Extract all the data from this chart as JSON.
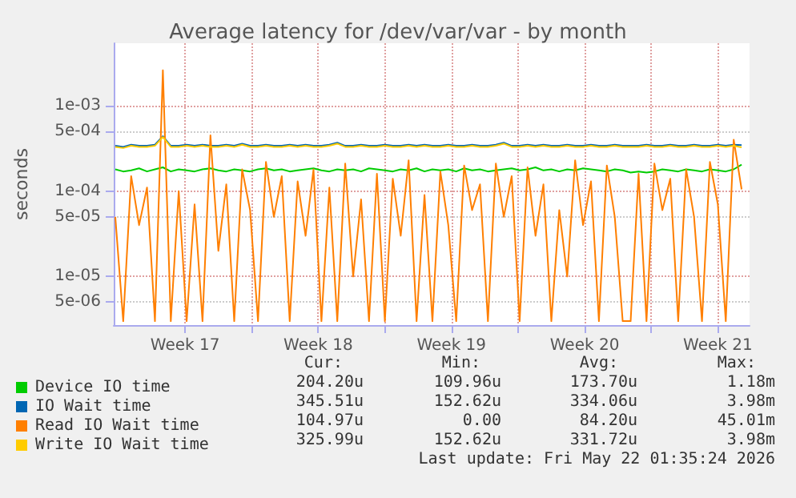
{
  "chart_data": {
    "type": "line",
    "title": "Average latency for /dev/var/var - by month",
    "ylabel": "seconds",
    "log": "y",
    "grid": true,
    "legend": "bottom",
    "marker": "none",
    "line_style": "solid",
    "xlim": [
      "2026-04-19T18:00",
      "2026-05-23T04:00"
    ],
    "xticks": [
      {
        "value": "2026-04-23T12:00",
        "label": "Week 17"
      },
      {
        "value": "2026-04-27T00:00",
        "label": null
      },
      {
        "value": "2026-04-30T12:00",
        "label": "Week 18"
      },
      {
        "value": "2026-05-04T00:00",
        "label": null
      },
      {
        "value": "2026-05-07T12:00",
        "label": "Week 19"
      },
      {
        "value": "2026-05-11T00:00",
        "label": null
      },
      {
        "value": "2026-05-14T12:00",
        "label": "Week 20"
      },
      {
        "value": "2026-05-18T00:00",
        "label": null
      },
      {
        "value": "2026-05-21T12:00",
        "label": "Week 21"
      }
    ],
    "ylim": [
      2.7e-06,
      0.0054
    ],
    "yticks": [
      {
        "value": 5e-06,
        "label": "5e-06"
      },
      {
        "value": 1e-05,
        "label": "1e-05"
      },
      {
        "value": 5e-05,
        "label": "5e-05"
      },
      {
        "value": 0.0001,
        "label": "1e-04"
      },
      {
        "value": 0.0005,
        "label": "5e-04"
      },
      {
        "value": 0.001,
        "label": "1e-03"
      }
    ],
    "x": [
      "2026-04-19T20:00",
      "2026-04-20T06:00",
      "2026-04-20T16:00",
      "2026-04-21T02:00",
      "2026-04-21T12:00",
      "2026-04-21T22:00",
      "2026-04-22T08:00",
      "2026-04-22T18:00",
      "2026-04-23T04:00",
      "2026-04-23T14:00",
      "2026-04-24T00:00",
      "2026-04-24T10:00",
      "2026-04-24T20:00",
      "2026-04-25T06:00",
      "2026-04-25T16:00",
      "2026-04-26T02:00",
      "2026-04-26T12:00",
      "2026-04-26T22:00",
      "2026-04-27T08:00",
      "2026-04-27T18:00",
      "2026-04-28T04:00",
      "2026-04-28T14:00",
      "2026-04-29T00:00",
      "2026-04-29T10:00",
      "2026-04-29T20:00",
      "2026-04-30T06:00",
      "2026-04-30T16:00",
      "2026-05-01T02:00",
      "2026-05-01T12:00",
      "2026-05-01T22:00",
      "2026-05-02T08:00",
      "2026-05-02T18:00",
      "2026-05-03T04:00",
      "2026-05-03T14:00",
      "2026-05-04T00:00",
      "2026-05-04T10:00",
      "2026-05-04T20:00",
      "2026-05-05T06:00",
      "2026-05-05T16:00",
      "2026-05-06T02:00",
      "2026-05-06T12:00",
      "2026-05-06T22:00",
      "2026-05-07T08:00",
      "2026-05-07T18:00",
      "2026-05-08T04:00",
      "2026-05-08T14:00",
      "2026-05-09T00:00",
      "2026-05-09T10:00",
      "2026-05-09T20:00",
      "2026-05-10T06:00",
      "2026-05-10T16:00",
      "2026-05-11T02:00",
      "2026-05-11T12:00",
      "2026-05-11T22:00",
      "2026-05-12T08:00",
      "2026-05-12T18:00",
      "2026-05-13T04:00",
      "2026-05-13T14:00",
      "2026-05-14T00:00",
      "2026-05-14T10:00",
      "2026-05-14T20:00",
      "2026-05-15T06:00",
      "2026-05-15T16:00",
      "2026-05-16T02:00",
      "2026-05-16T12:00",
      "2026-05-16T22:00",
      "2026-05-17T08:00",
      "2026-05-17T18:00",
      "2026-05-18T04:00",
      "2026-05-18T14:00",
      "2026-05-19T00:00",
      "2026-05-19T10:00",
      "2026-05-19T20:00",
      "2026-05-20T06:00",
      "2026-05-20T16:00",
      "2026-05-21T02:00",
      "2026-05-21T12:00",
      "2026-05-21T22:00",
      "2026-05-22T08:00",
      "2026-05-22T18:00"
    ],
    "series": [
      {
        "name": "Device IO time",
        "color": "#00cc00",
        "values": [
          0.00018,
          0.00017,
          0.000175,
          0.000185,
          0.00017,
          0.00018,
          0.00019,
          0.00017,
          0.00018,
          0.000175,
          0.00017,
          0.00018,
          0.000185,
          0.000175,
          0.00017,
          0.00018,
          0.000175,
          0.00017,
          0.00018,
          0.000185,
          0.000175,
          0.00018,
          0.00017,
          0.000175,
          0.00018,
          0.000185,
          0.000175,
          0.00017,
          0.00018,
          0.000175,
          0.00018,
          0.00017,
          0.000185,
          0.00018,
          0.000175,
          0.00017,
          0.00018,
          0.000175,
          0.000185,
          0.00017,
          0.00018,
          0.000175,
          0.00018,
          0.00017,
          0.000185,
          0.000175,
          0.00018,
          0.00017,
          0.000175,
          0.00018,
          0.000185,
          0.000175,
          0.00018,
          0.00019,
          0.000175,
          0.00018,
          0.00017,
          0.00018,
          0.000175,
          0.000185,
          0.00018,
          0.000175,
          0.00017,
          0.00018,
          0.000175,
          0.000165,
          0.00017,
          0.000165,
          0.00017,
          0.00018,
          0.000175,
          0.00017,
          0.00018,
          0.000175,
          0.00017,
          0.00018,
          0.000175,
          0.00017,
          0.00018,
          0.000204
        ]
      },
      {
        "name": "IO Wait time",
        "color": "#0066b3",
        "values": [
          0.00034,
          0.00033,
          0.00035,
          0.00034,
          0.00034,
          0.00035,
          0.00044,
          0.00034,
          0.00034,
          0.00035,
          0.00034,
          0.00035,
          0.00034,
          0.00034,
          0.00035,
          0.00034,
          0.00036,
          0.00034,
          0.00034,
          0.00035,
          0.00034,
          0.00034,
          0.00035,
          0.00034,
          0.00035,
          0.00034,
          0.00034,
          0.00035,
          0.00037,
          0.00034,
          0.00034,
          0.00035,
          0.00034,
          0.00034,
          0.00035,
          0.00034,
          0.00034,
          0.00035,
          0.00034,
          0.00035,
          0.00034,
          0.00034,
          0.00035,
          0.00034,
          0.00034,
          0.00035,
          0.00034,
          0.00034,
          0.00035,
          0.00037,
          0.00034,
          0.00034,
          0.00035,
          0.00034,
          0.00035,
          0.00034,
          0.00034,
          0.00035,
          0.00034,
          0.00034,
          0.00035,
          0.00034,
          0.00034,
          0.00035,
          0.00034,
          0.00034,
          0.00034,
          0.00035,
          0.00034,
          0.00034,
          0.00035,
          0.00034,
          0.00034,
          0.00035,
          0.00034,
          0.00034,
          0.00035,
          0.00034,
          0.00035,
          0.000346
        ]
      },
      {
        "name": "Read IO Wait time",
        "color": "#ff7f00",
        "values": [
          5e-05,
          3e-06,
          0.00015,
          4e-05,
          0.00011,
          3e-06,
          0.0026,
          3e-06,
          0.0001,
          3e-06,
          7e-05,
          3e-06,
          0.00045,
          2e-05,
          0.00012,
          3e-06,
          0.00018,
          6e-05,
          3e-06,
          0.00022,
          5e-05,
          0.00015,
          3e-06,
          0.00013,
          3e-05,
          0.00018,
          3e-06,
          0.00011,
          3e-06,
          0.00021,
          1e-05,
          8e-05,
          3e-06,
          0.00016,
          3e-06,
          0.00014,
          3e-05,
          0.00023,
          3e-06,
          9e-05,
          3e-06,
          0.00017,
          4e-05,
          3e-06,
          0.0002,
          6e-05,
          0.00012,
          3e-06,
          0.00021,
          5e-05,
          0.00015,
          3e-06,
          0.00019,
          3e-05,
          0.00012,
          3e-06,
          6e-05,
          1e-05,
          0.00023,
          4e-05,
          0.00013,
          3e-06,
          0.0002,
          5e-05,
          3e-06,
          3e-06,
          0.00016,
          3e-06,
          0.00021,
          6e-05,
          0.00014,
          3e-06,
          0.00018,
          5e-05,
          3e-06,
          0.00022,
          7e-05,
          3e-06,
          0.0004,
          0.000105
        ]
      },
      {
        "name": "Write IO Wait time",
        "color": "#ffcc00",
        "values": [
          0.00033,
          0.00032,
          0.00034,
          0.00033,
          0.00033,
          0.00034,
          0.00043,
          0.00033,
          0.00033,
          0.00034,
          0.00033,
          0.00034,
          0.00033,
          0.00033,
          0.00034,
          0.00033,
          0.00035,
          0.00033,
          0.00033,
          0.00034,
          0.00033,
          0.00033,
          0.00034,
          0.00033,
          0.00034,
          0.00033,
          0.00033,
          0.00034,
          0.00036,
          0.00033,
          0.00033,
          0.00034,
          0.00033,
          0.00033,
          0.00034,
          0.00033,
          0.00033,
          0.00034,
          0.00033,
          0.00034,
          0.00033,
          0.00033,
          0.00034,
          0.00033,
          0.00033,
          0.00034,
          0.00033,
          0.00033,
          0.00034,
          0.00036,
          0.00033,
          0.00033,
          0.00034,
          0.00033,
          0.00034,
          0.00033,
          0.00033,
          0.00034,
          0.00033,
          0.00033,
          0.00034,
          0.00033,
          0.00033,
          0.00034,
          0.00033,
          0.00033,
          0.00033,
          0.00034,
          0.00033,
          0.00033,
          0.00034,
          0.00033,
          0.00033,
          0.00034,
          0.00033,
          0.00033,
          0.00034,
          0.00033,
          0.00034,
          0.000326
        ]
      }
    ],
    "annotations": [
      "Cur:",
      "Min:",
      "Avg:",
      "Max:",
      "204.20u",
      "109.96u",
      "173.70u",
      "1.18m",
      "345.51u",
      "152.62u",
      "334.06u",
      "3.98m",
      "104.97u",
      "0.00",
      "84.20u",
      "45.01m",
      "325.99u",
      "152.62u",
      "331.72u",
      "3.98m",
      "Last update: Fri May 22 01:35:24 2026"
    ]
  }
}
